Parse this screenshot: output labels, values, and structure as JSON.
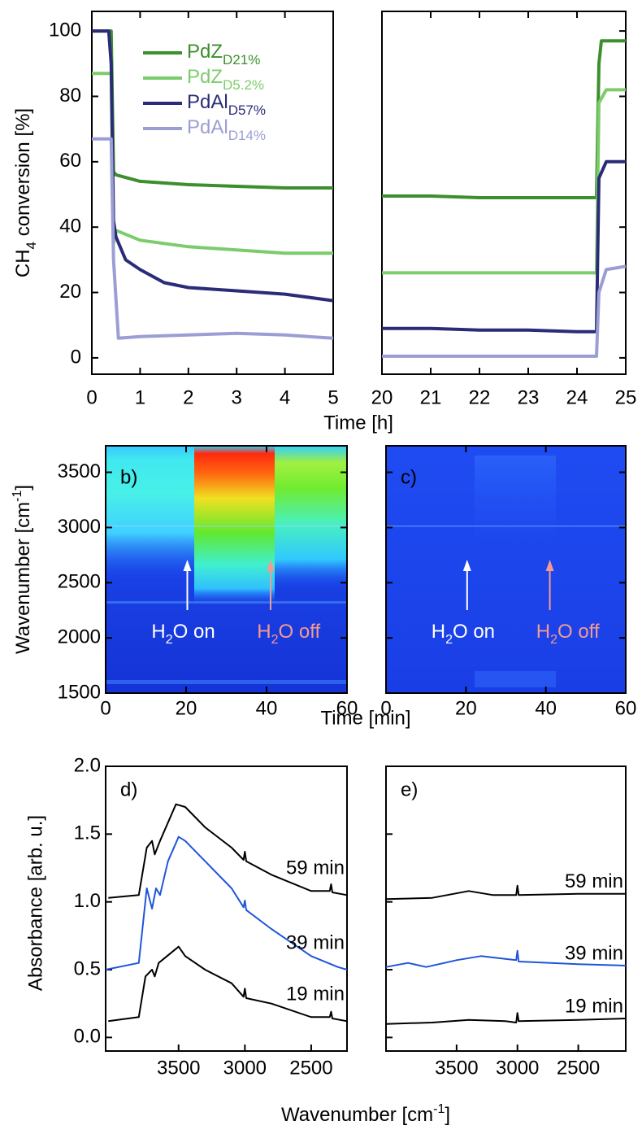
{
  "chart_data": [
    {
      "type": "line",
      "xlabel": "Time [h]",
      "ylabel": [
        "CH",
        "4",
        " conversion [%]"
      ],
      "xlim": [
        0,
        25
      ],
      "x_break": [
        5,
        20
      ],
      "xticks": [
        0,
        1,
        2,
        3,
        4,
        5,
        20,
        21,
        22,
        23,
        24,
        25
      ],
      "ylim": [
        -5,
        106
      ],
      "yticks": [
        0,
        20,
        40,
        60,
        80,
        100
      ],
      "series": [
        {
          "name": "PdZ",
          "name_sub": "D21%",
          "color": "#3c8f2c",
          "x": [
            0,
            0.4,
            0.45,
            0.5,
            1,
            2,
            3,
            4,
            5,
            20,
            21,
            22,
            23,
            24,
            24.4,
            24.45,
            24.5,
            25
          ],
          "values": [
            100,
            100,
            57,
            56,
            54,
            53,
            52.5,
            52,
            52,
            49.5,
            49.5,
            49,
            49,
            49,
            49,
            90,
            97,
            97
          ]
        },
        {
          "name": "PdZ",
          "name_sub": "D5.2%",
          "color": "#7ccc6c",
          "x": [
            0,
            0.4,
            0.45,
            0.5,
            1,
            2,
            3,
            4,
            5,
            20,
            21,
            22,
            23,
            24,
            24.4,
            24.45,
            24.6,
            25
          ],
          "values": [
            87,
            87,
            35,
            39,
            36,
            34,
            33,
            32,
            32,
            26,
            26,
            26,
            26,
            26,
            26,
            78,
            82,
            82
          ]
        },
        {
          "name": "PdAl",
          "name_sub": "D57%",
          "color": "#2a2c78",
          "x": [
            0,
            0.35,
            0.4,
            0.45,
            0.5,
            0.7,
            1,
            1.5,
            2,
            3,
            4,
            5,
            20,
            21,
            22,
            23,
            24,
            24.4,
            24.45,
            24.6,
            25
          ],
          "values": [
            100,
            100,
            90,
            42,
            37,
            30,
            27,
            23,
            21.5,
            20.5,
            19.5,
            17.5,
            9,
            9,
            8.5,
            8.5,
            8,
            8,
            55,
            60,
            60
          ]
        },
        {
          "name": "PdAl",
          "name_sub": "D14%",
          "color": "#9b9ed4",
          "x": [
            0,
            0.4,
            0.45,
            0.55,
            1,
            2,
            3,
            4,
            5,
            20,
            21,
            22,
            23,
            24,
            24.4,
            24.45,
            24.6,
            25
          ],
          "values": [
            67,
            67,
            30,
            6,
            6.5,
            7,
            7.5,
            7,
            6,
            0.5,
            0.5,
            0.5,
            0.5,
            0.5,
            0.5,
            20,
            27,
            28
          ]
        }
      ]
    },
    {
      "type": "heatmap",
      "panel_label": "b)",
      "xlabel": "Time [min]",
      "ylabel": [
        "Wavenumber [cm",
        "-1",
        "]"
      ],
      "xlim": [
        0,
        60
      ],
      "xticks": [
        0,
        20,
        40,
        60
      ],
      "ylim": [
        1500,
        3740
      ],
      "yticks": [
        1500,
        2000,
        2500,
        3000,
        3500
      ],
      "annotations": [
        {
          "parts": [
            "H",
            "2",
            "O on"
          ],
          "color": "#ffffff"
        },
        {
          "parts": [
            "H",
            "2",
            "O off"
          ],
          "color": "#f59a92"
        }
      ]
    },
    {
      "type": "heatmap",
      "panel_label": "c)",
      "xlim": [
        0,
        60
      ],
      "xticks": [
        0,
        20,
        40,
        60
      ],
      "ylim": [
        1500,
        3740
      ],
      "yticks": [
        1500,
        2000,
        2500,
        3000,
        3500
      ],
      "ytick_labels": false,
      "annotations": [
        {
          "parts": [
            "H",
            "2",
            "O on"
          ],
          "color": "#ffffff"
        },
        {
          "parts": [
            "H",
            "2",
            "O off"
          ],
          "color": "#f59a92"
        }
      ]
    },
    {
      "type": "spectra",
      "panel_label": "d)",
      "xlabel": [
        "Wavenumber [cm",
        "-1",
        "]"
      ],
      "ylabel": "Absorbance [arb. u.]",
      "xlim": [
        4050,
        2230
      ],
      "xticks": [
        3500,
        3000,
        2500
      ],
      "ylim": [
        -0.1,
        2.0
      ],
      "yticks": [
        {
          "value": 0,
          "label": "0.0"
        },
        0.5,
        {
          "value": 1,
          "label": "1.0"
        },
        1.5,
        {
          "value": 2,
          "label": "2.0"
        }
      ],
      "series": [
        {
          "name": "59 min",
          "color": "#000000",
          "x": [
            4030,
            3800,
            3740,
            3700,
            3680,
            3640,
            3520,
            3450,
            3300,
            3100,
            3010,
            3000,
            2990,
            2800,
            2500,
            2360,
            2350,
            2340,
            2230
          ],
          "values": [
            1.03,
            1.05,
            1.4,
            1.45,
            1.35,
            1.45,
            1.72,
            1.7,
            1.55,
            1.4,
            1.31,
            1.37,
            1.3,
            1.2,
            1.08,
            1.08,
            1.13,
            1.07,
            1.05
          ]
        },
        {
          "name": "39 min",
          "color": "#1f56d8",
          "x": [
            4050,
            3800,
            3740,
            3700,
            3670,
            3640,
            3580,
            3500,
            3450,
            3300,
            3100,
            3010,
            3000,
            2990,
            2800,
            2500,
            2300,
            2230
          ],
          "values": [
            0.5,
            0.55,
            1.1,
            0.95,
            1.1,
            1.05,
            1.3,
            1.48,
            1.45,
            1.3,
            1.1,
            0.96,
            1.01,
            0.94,
            0.8,
            0.6,
            0.52,
            0.5
          ]
        },
        {
          "name": "19 min",
          "color": "#000000",
          "x": [
            4030,
            3800,
            3750,
            3700,
            3680,
            3650,
            3500,
            3450,
            3300,
            3100,
            3010,
            3000,
            2990,
            2800,
            2500,
            2360,
            2350,
            2340,
            2230
          ],
          "values": [
            0.12,
            0.15,
            0.45,
            0.5,
            0.45,
            0.55,
            0.67,
            0.6,
            0.5,
            0.4,
            0.3,
            0.36,
            0.29,
            0.25,
            0.15,
            0.15,
            0.19,
            0.14,
            0.12
          ]
        }
      ]
    },
    {
      "type": "spectra",
      "panel_label": "e)",
      "xlim": [
        4080,
        2110
      ],
      "xticks": [
        3500,
        3000,
        2500
      ],
      "ylim": [
        -0.1,
        2.0
      ],
      "yticks": [
        {
          "value": 0,
          "label": "0.0"
        },
        0.5,
        {
          "value": 1,
          "label": "1.0"
        },
        1.5,
        {
          "value": 2,
          "label": "2.0"
        }
      ],
      "ytick_labels": false,
      "series": [
        {
          "name": "59 min",
          "color": "#000000",
          "x": [
            4080,
            3700,
            3400,
            3200,
            3010,
            3000,
            2990,
            2500,
            2110
          ],
          "values": [
            1.02,
            1.03,
            1.08,
            1.05,
            1.05,
            1.12,
            1.05,
            1.06,
            1.06
          ]
        },
        {
          "name": "39 min",
          "color": "#1f56d8",
          "x": [
            4080,
            3900,
            3750,
            3600,
            3500,
            3300,
            3100,
            3010,
            3000,
            2990,
            2500,
            2110
          ],
          "values": [
            0.52,
            0.55,
            0.52,
            0.55,
            0.57,
            0.6,
            0.58,
            0.57,
            0.64,
            0.56,
            0.54,
            0.53
          ]
        },
        {
          "name": "19 min",
          "color": "#000000",
          "x": [
            4080,
            3700,
            3400,
            3100,
            3010,
            3000,
            2990,
            2500,
            2110
          ],
          "values": [
            0.1,
            0.11,
            0.13,
            0.12,
            0.11,
            0.18,
            0.12,
            0.13,
            0.14
          ]
        }
      ]
    }
  ]
}
